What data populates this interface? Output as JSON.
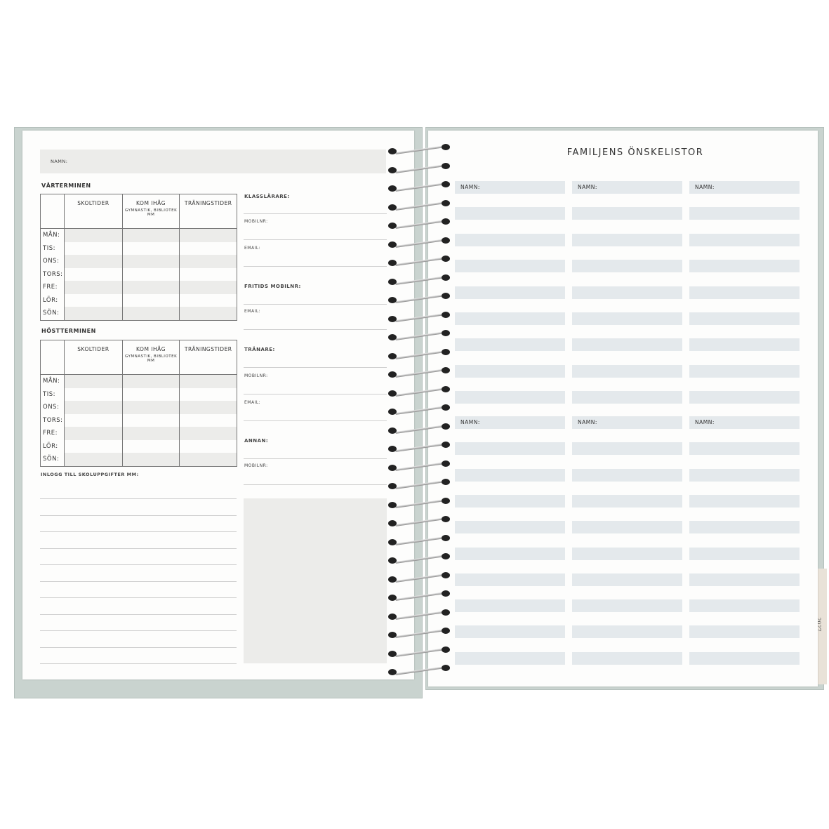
{
  "left_page": {
    "name_label": "NAMN:",
    "spring_title": "VÅRTERMINEN",
    "autumn_title": "HÖSTTERMINEN",
    "columns": [
      "SKOLTIDER",
      "KOM IHÅG",
      "TRÄNINGSTIDER"
    ],
    "column_note": "GYMNASTIK, BIBLIOTEK MM",
    "days": [
      "MÅN:",
      "TIS:",
      "ONS:",
      "TORS:",
      "FRE:",
      "LÖR:",
      "SÖN:"
    ],
    "contacts": [
      {
        "label": "KLASSLÄRARE:",
        "bold": true
      },
      {
        "label": "MOBILNR:"
      },
      {
        "label": "EMAIL:"
      },
      {
        "label": "FRITIDS MOBILNR:",
        "bold": true
      },
      {
        "label": "EMAIL:"
      },
      {
        "label": "TRÄNARE:",
        "bold": true
      },
      {
        "label": "MOBILNR:"
      },
      {
        "label": "EMAIL:"
      },
      {
        "label": "ANNAN:",
        "bold": true
      },
      {
        "label": "MOBILNR:"
      }
    ],
    "login_label": "INLOGG TILL SKOLUPPGIFTER MM:"
  },
  "right_page": {
    "title": "FAMILJENS ÖNSKELISTOR",
    "name_label": "NAMN:",
    "tab_year": "2027"
  },
  "colors": {
    "cover": "#c9d3cf",
    "bar": "#e4e9ec",
    "stripe": "#ececea",
    "tab": "#e9e2d8"
  }
}
